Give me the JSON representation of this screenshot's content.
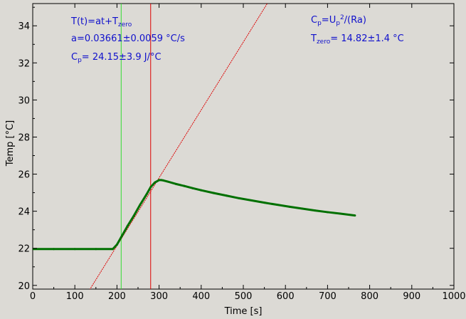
{
  "chart_data": {
    "type": "line",
    "xlabel": "Time [s]",
    "ylabel": "Temp [°C]",
    "xlim": [
      0,
      1000
    ],
    "ylim": [
      19.8,
      35.2
    ],
    "xticks": [
      0,
      100,
      200,
      300,
      400,
      500,
      600,
      700,
      800,
      900,
      1000
    ],
    "yticks": [
      20,
      22,
      24,
      26,
      28,
      30,
      32,
      34
    ],
    "grid": false,
    "colors": {
      "data": "#007000",
      "fit": "#dd0000",
      "start_marker": "#33dd33",
      "end_marker": "#dd0000",
      "annotation": "#1010cc",
      "background": "#dcdad5"
    },
    "series": [
      {
        "role": "measured",
        "x": [
          0,
          50,
          100,
          150,
          190,
          200,
          210,
          225,
          240,
          255,
          270,
          280,
          290,
          300,
          305,
          310,
          320,
          340,
          360,
          380,
          400,
          430,
          460,
          490,
          520,
          550,
          580,
          610,
          640,
          670,
          700,
          730,
          765
        ],
        "y": [
          21.96,
          21.96,
          21.96,
          21.96,
          21.96,
          22.2,
          22.6,
          23.2,
          23.75,
          24.35,
          24.9,
          25.3,
          25.55,
          25.68,
          25.68,
          25.66,
          25.6,
          25.47,
          25.36,
          25.24,
          25.13,
          24.98,
          24.84,
          24.7,
          24.58,
          24.46,
          24.35,
          24.24,
          24.14,
          24.04,
          23.95,
          23.87,
          23.77
        ]
      },
      {
        "role": "fit",
        "x": [
          135,
          560
        ],
        "y": [
          19.76,
          35.32
        ]
      }
    ],
    "markers": [
      {
        "x": 210,
        "role": "start"
      },
      {
        "x": 280,
        "role": "end"
      }
    ]
  },
  "annotations": {
    "line1": {
      "pre": "T(t)=at+T",
      "sub": "zero"
    },
    "line2": "a=0.03661±0.0059 °C/s",
    "line3": {
      "pre": "C",
      "sub": "p",
      "post": "= 24.15±3.9 J/°C"
    },
    "line4": {
      "pre": "C",
      "sub1": "p",
      "mid": "=U",
      "sub2": "p",
      "sup": "2",
      "post": "/(Ra)"
    },
    "line5": {
      "pre": "T",
      "sub": "zero",
      "post": "= 14.82±1.4 °C"
    }
  }
}
